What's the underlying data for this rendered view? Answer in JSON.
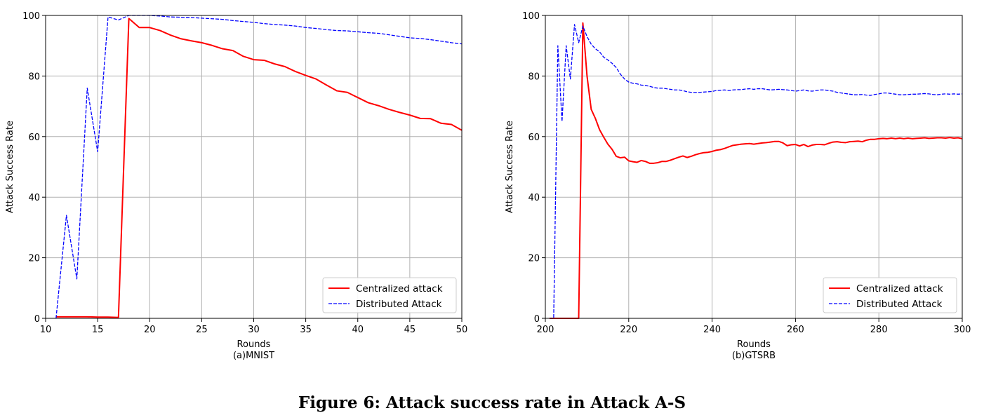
{
  "caption": "Figure 6: Attack success rate in Attack A-S",
  "colors": {
    "centralized": "#ff0000",
    "distributed": "#0000ff",
    "grid": "#b0b0b0"
  },
  "chart_data": [
    {
      "type": "line",
      "subtitle": "(a)MNIST",
      "xlabel": "Rounds",
      "ylabel": "Attack Success Rate",
      "xlim": [
        10,
        50
      ],
      "ylim": [
        0,
        100
      ],
      "xticks": [
        10,
        15,
        20,
        25,
        30,
        35,
        40,
        45,
        50
      ],
      "yticks": [
        0,
        20,
        40,
        60,
        80,
        100
      ],
      "grid": true,
      "legend_position": "bottom-right",
      "series": [
        {
          "name": "Centralized attack",
          "style": "solid",
          "color": "#ff0000",
          "x": [
            11,
            12,
            13,
            14,
            15,
            16,
            17,
            18,
            19,
            20,
            21,
            22,
            23,
            24,
            25,
            26,
            27,
            28,
            29,
            30,
            31,
            32,
            33,
            34,
            35,
            36,
            37,
            38,
            39,
            40,
            41,
            42,
            43,
            44,
            45,
            46,
            47,
            48,
            49,
            50
          ],
          "y": [
            0.5,
            0.5,
            0.5,
            0.5,
            0.4,
            0.4,
            0.3,
            99,
            96,
            96,
            95,
            93.5,
            92.3,
            91.6,
            91,
            90.1,
            89,
            88.4,
            86.5,
            85.4,
            85.2,
            84,
            83.1,
            81.5,
            80.2,
            79,
            77,
            75.1,
            74.6,
            72.9,
            71.2,
            70.2,
            69,
            68,
            67.1,
            66,
            65.9,
            64.4,
            64,
            62.1
          ]
        },
        {
          "name": "Distributed Attack",
          "style": "dashed",
          "color": "#0000ff",
          "x": [
            11,
            12,
            13,
            14,
            15,
            16,
            17,
            18,
            19,
            20,
            21,
            22,
            23,
            24,
            25,
            26,
            27,
            28,
            29,
            30,
            31,
            32,
            33,
            34,
            35,
            36,
            37,
            38,
            39,
            40,
            41,
            42,
            43,
            44,
            45,
            46,
            47,
            48,
            49,
            50
          ],
          "y": [
            0,
            34,
            13,
            76,
            55,
            99.5,
            98.5,
            100,
            100,
            100,
            99.8,
            99.5,
            99.4,
            99.3,
            99.1,
            98.9,
            98.7,
            98.3,
            98,
            97.7,
            97.3,
            97,
            96.8,
            96.5,
            96,
            95.7,
            95.3,
            95,
            94.9,
            94.6,
            94.3,
            94.1,
            93.6,
            93.1,
            92.6,
            92.4,
            92,
            91.5,
            91,
            90.6
          ]
        }
      ]
    },
    {
      "type": "line",
      "subtitle": "(b)GTSRB",
      "xlabel": "Rounds",
      "ylabel": "Attack Success Rate",
      "xlim": [
        200,
        300
      ],
      "ylim": [
        0,
        100
      ],
      "xticks": [
        200,
        220,
        240,
        260,
        280,
        300
      ],
      "yticks": [
        0,
        20,
        40,
        60,
        80,
        100
      ],
      "grid": true,
      "legend_position": "bottom-right",
      "series": [
        {
          "name": "Centralized attack",
          "style": "solid",
          "color": "#ff0000",
          "x": [
            201,
            202,
            203,
            204,
            205,
            206,
            207,
            208,
            209,
            210,
            211,
            212,
            213,
            214,
            215,
            216,
            217,
            218,
            219,
            220,
            221,
            222,
            223,
            224,
            225,
            226,
            227,
            228,
            229,
            230,
            231,
            232,
            233,
            234,
            235,
            236,
            237,
            238,
            239,
            240,
            241,
            242,
            243,
            244,
            245,
            246,
            247,
            248,
            249,
            250,
            251,
            252,
            253,
            254,
            255,
            256,
            257,
            258,
            259,
            260,
            261,
            262,
            263,
            264,
            265,
            266,
            267,
            268,
            269,
            270,
            271,
            272,
            273,
            274,
            275,
            276,
            277,
            278,
            279,
            280,
            281,
            282,
            283,
            284,
            285,
            286,
            287,
            288,
            289,
            290,
            291,
            292,
            293,
            294,
            295,
            296,
            297,
            298,
            299,
            300
          ],
          "y": [
            0,
            0,
            0,
            0,
            0,
            0,
            0,
            0,
            97.5,
            80,
            69,
            66,
            62.3,
            59.8,
            57.5,
            55.8,
            53.5,
            53,
            53.2,
            52,
            51.7,
            51.5,
            52.1,
            51.8,
            51.2,
            51.2,
            51.4,
            51.8,
            51.8,
            52.2,
            52.7,
            53.2,
            53.6,
            53.1,
            53.5,
            54,
            54.4,
            54.7,
            54.8,
            55.1,
            55.5,
            55.7,
            56.1,
            56.6,
            57.1,
            57.3,
            57.5,
            57.6,
            57.7,
            57.5,
            57.7,
            57.9,
            58,
            58.2,
            58.4,
            58.4,
            57.9,
            57,
            57.3,
            57.4,
            56.9,
            57.4,
            56.7,
            57.2,
            57.4,
            57.4,
            57.3,
            57.8,
            58.2,
            58.3,
            58.1,
            58,
            58.3,
            58.4,
            58.5,
            58.3,
            58.8,
            59.1,
            59.1,
            59.3,
            59.4,
            59.3,
            59.5,
            59.3,
            59.5,
            59.3,
            59.5,
            59.3,
            59.4,
            59.5,
            59.6,
            59.4,
            59.5,
            59.6,
            59.6,
            59.5,
            59.7,
            59.5,
            59.6,
            59.3
          ]
        },
        {
          "name": "Distributed Attack",
          "style": "dashed",
          "color": "#0000ff",
          "x": [
            201,
            202,
            203,
            204,
            205,
            206,
            207,
            208,
            209,
            210,
            211,
            212,
            213,
            214,
            215,
            216,
            217,
            218,
            219,
            220,
            221,
            222,
            223,
            224,
            225,
            226,
            227,
            228,
            229,
            230,
            231,
            232,
            233,
            234,
            235,
            236,
            237,
            238,
            239,
            240,
            241,
            242,
            243,
            244,
            245,
            246,
            247,
            248,
            249,
            250,
            251,
            252,
            253,
            254,
            255,
            256,
            257,
            258,
            259,
            260,
            261,
            262,
            263,
            264,
            265,
            266,
            267,
            268,
            269,
            270,
            271,
            272,
            273,
            274,
            275,
            276,
            277,
            278,
            279,
            280,
            281,
            282,
            283,
            284,
            285,
            286,
            287,
            288,
            289,
            290,
            291,
            292,
            293,
            294,
            295,
            296,
            297,
            298,
            299,
            300
          ],
          "y": [
            0,
            0,
            90,
            65,
            90,
            79,
            97,
            91,
            96.5,
            93,
            90.5,
            89,
            88,
            86.2,
            85.3,
            84.2,
            82.8,
            80.6,
            79,
            78,
            77.6,
            77.4,
            77,
            76.9,
            76.6,
            76.2,
            76,
            76,
            75.8,
            75.6,
            75.4,
            75.4,
            75.2,
            74.8,
            74.6,
            74.6,
            74.6,
            74.7,
            74.8,
            74.9,
            75.2,
            75.3,
            75.4,
            75.2,
            75.4,
            75.5,
            75.5,
            75.7,
            75.8,
            75.6,
            75.8,
            75.8,
            75.6,
            75.4,
            75.5,
            75.6,
            75.5,
            75.4,
            75.2,
            75,
            75.2,
            75.4,
            75.1,
            75,
            75.2,
            75.4,
            75.4,
            75.2,
            75,
            74.6,
            74.4,
            74.2,
            74,
            73.8,
            73.8,
            73.9,
            73.7,
            73.6,
            73.9,
            74.1,
            74.4,
            74.4,
            74.2,
            74,
            73.8,
            73.8,
            73.9,
            74,
            74,
            74.1,
            74.2,
            74.1,
            73.9,
            73.8,
            74,
            74.1,
            74,
            74.1,
            74,
            74.1
          ]
        }
      ]
    }
  ]
}
